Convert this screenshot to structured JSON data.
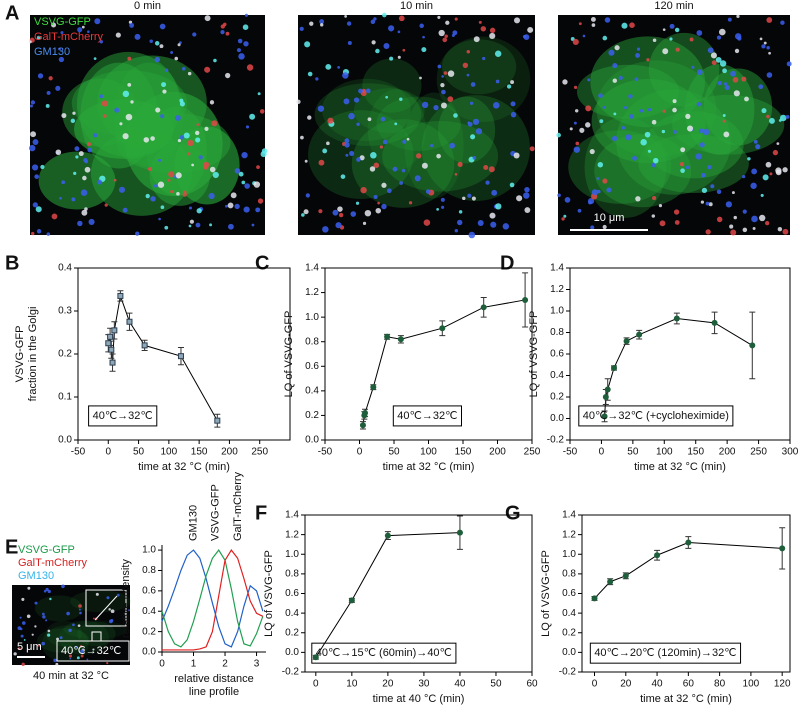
{
  "panel_labels": [
    "A",
    "B",
    "C",
    "D",
    "E",
    "F",
    "G"
  ],
  "images": {
    "titles": [
      "0 min",
      "10 min",
      "120 min"
    ],
    "channels": [
      "VSVG-GFP",
      "GalT-mCherry",
      "GM130"
    ],
    "channel_colors": [
      "#3ddc3d",
      "#e8383c",
      "#4a8cf0"
    ],
    "scale_bar": "10 μm"
  },
  "image_e": {
    "channels": [
      "VSVG-GFP",
      "GalT-mCherry",
      "GM130"
    ],
    "channel_colors": [
      "#1a9a4a",
      "#d42020",
      "#33b4e8"
    ],
    "scale_bar": "5 μm",
    "annotation": "40℃→32℃",
    "caption": "40 min at 32 °C"
  },
  "chart_data": [
    {
      "type": "line",
      "marker": "square",
      "ylabel": [
        "VSVG-GFP",
        "fraction in the Golgi"
      ],
      "xlabel": "time at 32 °C (min)",
      "annotation": "40℃→32℃",
      "x": [
        0,
        3,
        5,
        7,
        10,
        20,
        35,
        60,
        120,
        180
      ],
      "series": [
        {
          "color": "#2c3e50",
          "values": [
            0.225,
            0.24,
            0.21,
            0.18,
            0.255,
            0.335,
            0.275,
            0.22,
            0.195,
            0.045
          ],
          "errors": [
            0.02,
            0.02,
            0.02,
            0.02,
            0.02,
            0.012,
            0.02,
            0.012,
            0.02,
            0.015
          ]
        }
      ],
      "xlim": [
        -50,
        300
      ],
      "xticks": [
        -50,
        0,
        50,
        100,
        150,
        200,
        250
      ],
      "ylim": [
        0,
        0.4
      ],
      "yticks": [
        {
          "value": 0,
          "label": "0.0"
        },
        0.1,
        0.2,
        0.3,
        0.4
      ]
    },
    {
      "type": "line",
      "marker": "circle",
      "ylabel": "LQ of VSVG-GFP",
      "xlabel": "time at 32 °C (min)",
      "annotation": "40℃→32℃",
      "x": [
        5,
        7,
        8,
        20,
        40,
        60,
        120,
        180,
        240
      ],
      "series": [
        {
          "color": "#1e5e3a",
          "values": [
            0.12,
            0.2,
            0.22,
            0.43,
            0.84,
            0.82,
            0.91,
            1.08,
            1.14
          ],
          "errors": [
            0.03,
            0.03,
            0.03,
            0.02,
            0.02,
            0.03,
            0.06,
            0.08,
            0.22
          ]
        }
      ],
      "xlim": [
        -50,
        250
      ],
      "xticks": [
        -50,
        0,
        50,
        100,
        150,
        200,
        250
      ],
      "ylim": [
        0,
        1.4
      ],
      "yticks": [
        {
          "value": 0,
          "label": "0.0"
        },
        0.2,
        0.4,
        0.6,
        0.8,
        {
          "value": 1,
          "label": "1.0"
        },
        1.2,
        1.4
      ]
    },
    {
      "type": "line",
      "marker": "circle",
      "ylabel": "LQ of VSVG-GFP",
      "xlabel": "time at 32 °C (min)",
      "annotation": "40℃→32℃ (+cycloheximide)",
      "x": [
        5,
        7,
        10,
        20,
        40,
        60,
        120,
        180,
        240
      ],
      "series": [
        {
          "color": "#1e5e3a",
          "values": [
            0.02,
            0.2,
            0.27,
            0.47,
            0.72,
            0.78,
            0.93,
            0.89,
            0.68
          ],
          "errors": [
            0.05,
            0.07,
            0.1,
            0.02,
            0.03,
            0.04,
            0.05,
            0.1,
            0.31
          ]
        }
      ],
      "xlim": [
        -50,
        300
      ],
      "xticks": [
        -50,
        0,
        50,
        100,
        150,
        200,
        250,
        300
      ],
      "ylim": [
        -0.2,
        1.4
      ],
      "yticks": [
        -0.2,
        {
          "value": 0,
          "label": "0.0"
        },
        0.2,
        0.4,
        0.6,
        0.8,
        {
          "value": 1,
          "label": "1.0"
        },
        1.2,
        1.4
      ]
    },
    {
      "type": "profile",
      "ylabel": "relative intensity",
      "xlabel": [
        "relative distance",
        "line profile"
      ],
      "x": [
        0,
        0.2,
        0.4,
        0.6,
        0.8,
        1.0,
        1.2,
        1.4,
        1.6,
        1.8,
        2.0,
        2.2,
        2.4,
        2.6,
        2.8,
        3.0,
        3.2
      ],
      "series": [
        {
          "name": "GM130",
          "color": "#2060c8",
          "values": [
            0.3,
            0.45,
            0.62,
            0.8,
            0.95,
            1.0,
            0.92,
            0.72,
            0.48,
            0.25,
            0.08,
            0.05,
            0.2,
            0.45,
            0.65,
            0.6,
            0.4
          ]
        },
        {
          "name": "VSVG-GFP",
          "color": "#20a050",
          "values": [
            0.4,
            0.2,
            0.08,
            0.05,
            0.12,
            0.3,
            0.52,
            0.75,
            0.92,
            1.0,
            0.9,
            0.62,
            0.3,
            0.08,
            0.06,
            0.18,
            0.35
          ]
        },
        {
          "name": "GalT-mCherry",
          "color": "#e02020",
          "values": [
            0.02,
            0.02,
            0.02,
            0.02,
            0.02,
            0.02,
            0.03,
            0.05,
            0.2,
            0.55,
            0.9,
            1.0,
            0.92,
            0.72,
            0.5,
            0.38,
            0.35
          ]
        }
      ],
      "xlim": [
        0,
        3.3
      ],
      "xticks": [
        0,
        1,
        2,
        3
      ],
      "ylim": [
        0,
        1.05
      ],
      "yticks": [
        {
          "value": 0,
          "label": "0.0"
        },
        0.2,
        0.4,
        0.6,
        0.8,
        {
          "value": 1,
          "label": "1.0"
        }
      ]
    },
    {
      "type": "line",
      "marker": "circle",
      "ylabel": "LQ of VSVG-GFP",
      "xlabel": "time at 40 °C (min)",
      "annotation": "40℃→15℃ (60min)→40℃",
      "x": [
        0,
        10,
        20,
        40
      ],
      "series": [
        {
          "color": "#1e5e3a",
          "values": [
            -0.05,
            0.53,
            1.19,
            1.22
          ],
          "errors": [
            0.02,
            0.02,
            0.04,
            0.17
          ]
        }
      ],
      "xlim": [
        -3,
        60
      ],
      "xticks": [
        0,
        10,
        20,
        30,
        40,
        50,
        60
      ],
      "ylim": [
        -0.2,
        1.4
      ],
      "yticks": [
        -0.2,
        {
          "value": 0,
          "label": "0.0"
        },
        0.2,
        0.4,
        0.6,
        0.8,
        {
          "value": 1,
          "label": "1.0"
        },
        1.2,
        1.4
      ]
    },
    {
      "type": "line",
      "marker": "circle",
      "ylabel": "LQ of VSVG-GFP",
      "xlabel": "time at 32 °C (min)",
      "annotation": "40℃→20℃ (120min)→32℃",
      "x": [
        0,
        10,
        20,
        40,
        60,
        120
      ],
      "series": [
        {
          "color": "#1e5e3a",
          "values": [
            0.55,
            0.72,
            0.78,
            0.99,
            1.12,
            1.06
          ],
          "errors": [
            0.02,
            0.03,
            0.03,
            0.05,
            0.06,
            0.21
          ]
        }
      ],
      "xlim": [
        -8,
        125
      ],
      "xticks": [
        0,
        20,
        40,
        60,
        80,
        100,
        120
      ],
      "ylim": [
        -0.2,
        1.4
      ],
      "yticks": [
        -0.2,
        {
          "value": 0,
          "label": "0.0"
        },
        0.2,
        0.4,
        0.6,
        0.8,
        {
          "value": 1,
          "label": "1.0"
        },
        1.2,
        1.4
      ]
    }
  ]
}
